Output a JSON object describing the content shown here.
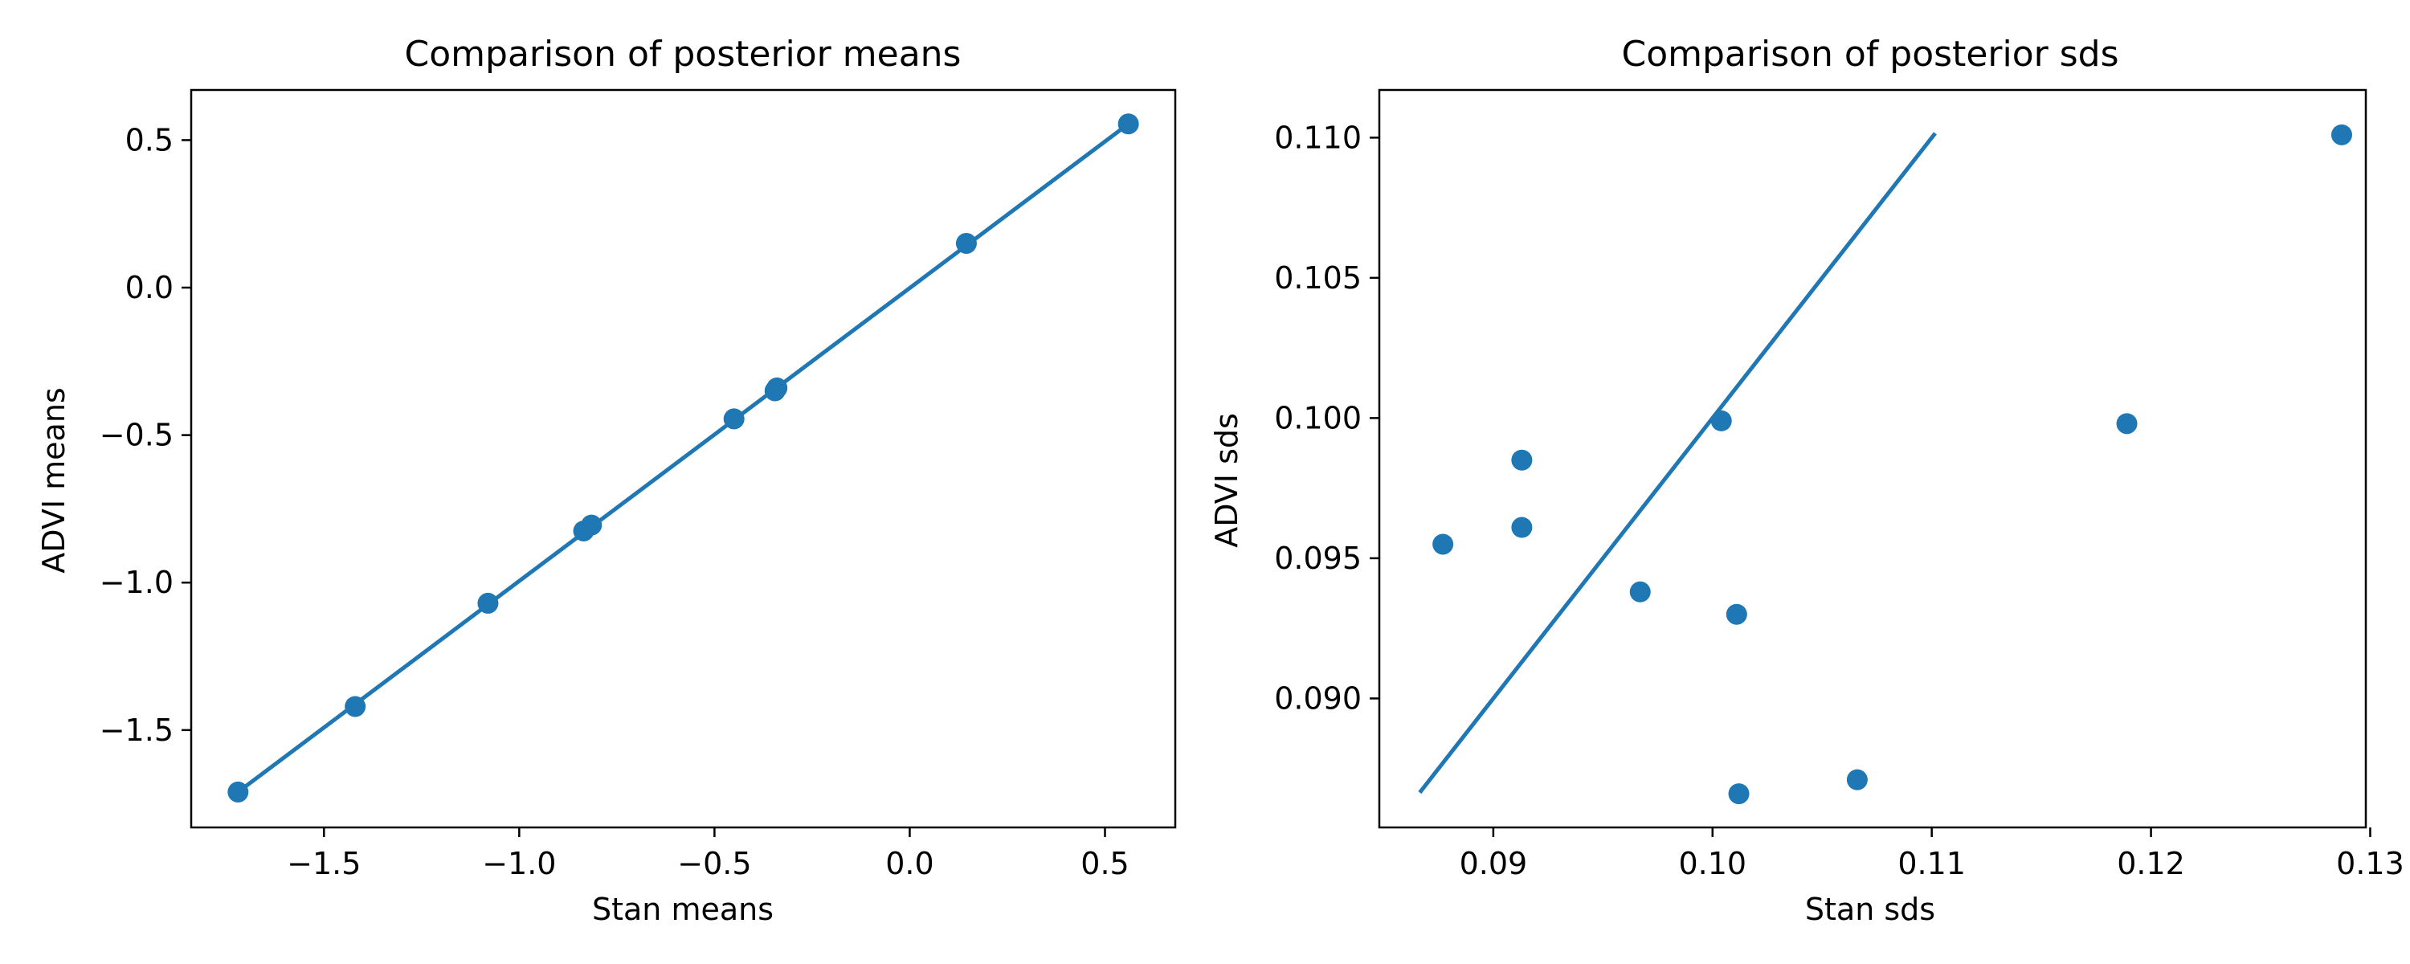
{
  "colors": {
    "series": "#1f77b4",
    "axes": "#000000",
    "background": "#ffffff"
  },
  "chart_data": [
    {
      "type": "scatter",
      "title": "Comparison of posterior means",
      "xlabel": "Stan means",
      "ylabel": "ADVI means",
      "xlim": [
        -1.84,
        0.68
      ],
      "ylim": [
        -1.83,
        0.67
      ],
      "grid": false,
      "xticks": [
        -1.5,
        -1.0,
        -0.5,
        0.0,
        0.5
      ],
      "xtick_labels": [
        "−1.5",
        "−1.0",
        "−0.5",
        "0.0",
        "0.5"
      ],
      "yticks": [
        -1.5,
        -1.0,
        -0.5,
        0.0,
        0.5
      ],
      "ytick_labels": [
        "−1.5",
        "−1.0",
        "−0.5",
        "0.0",
        "0.5"
      ],
      "points": [
        {
          "x": -1.72,
          "y": -1.71
        },
        {
          "x": -1.42,
          "y": -1.42
        },
        {
          "x": -1.08,
          "y": -1.07
        },
        {
          "x": -0.835,
          "y": -0.825
        },
        {
          "x": -0.815,
          "y": -0.805
        },
        {
          "x": -0.45,
          "y": -0.445
        },
        {
          "x": -0.345,
          "y": -0.35
        },
        {
          "x": -0.34,
          "y": -0.34
        },
        {
          "x": 0.145,
          "y": 0.15
        },
        {
          "x": 0.56,
          "y": 0.555
        }
      ],
      "reference_line": {
        "x": [
          -1.72,
          0.56
        ],
        "y": [
          -1.71,
          0.555
        ]
      }
    },
    {
      "type": "scatter",
      "title": "Comparison of posterior sds",
      "xlabel": "Stan sds",
      "ylabel": "ADVI sds",
      "xlim": [
        0.0848,
        0.1298
      ],
      "ylim": [
        0.0854,
        0.1117
      ],
      "grid": false,
      "xticks": [
        0.09,
        0.1,
        0.11,
        0.12,
        0.13
      ],
      "xtick_labels": [
        "0.09",
        "0.10",
        "0.11",
        "0.12",
        "0.13"
      ],
      "yticks": [
        0.09,
        0.095,
        0.1,
        0.105,
        0.11
      ],
      "ytick_labels": [
        "0.090",
        "0.095",
        "0.100",
        "0.105",
        "0.110"
      ],
      "points": [
        {
          "x": 0.0877,
          "y": 0.0955
        },
        {
          "x": 0.0913,
          "y": 0.0985
        },
        {
          "x": 0.0913,
          "y": 0.0961
        },
        {
          "x": 0.0967,
          "y": 0.0938
        },
        {
          "x": 0.1004,
          "y": 0.0999
        },
        {
          "x": 0.1011,
          "y": 0.093
        },
        {
          "x": 0.1012,
          "y": 0.0866
        },
        {
          "x": 0.1066,
          "y": 0.0871
        },
        {
          "x": 0.1189,
          "y": 0.0998
        },
        {
          "x": 0.1287,
          "y": 0.1101
        }
      ],
      "reference_line": {
        "x": [
          0.0867,
          0.1101
        ],
        "y": [
          0.0867,
          0.1101
        ]
      }
    }
  ]
}
